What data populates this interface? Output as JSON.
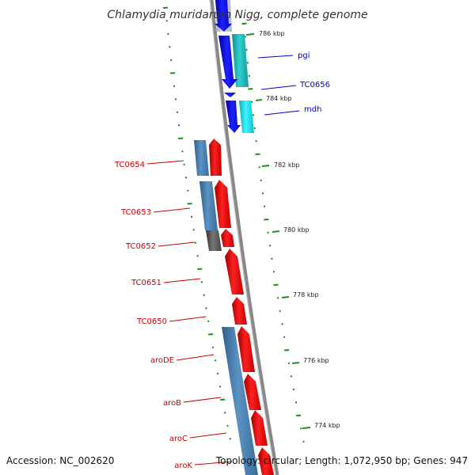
{
  "title": "Chlamydia muridarum Nigg, complete genome",
  "accession": "Accession: NC_002620",
  "topology": "Topology: circular; Length: 1,072,950 bp; Genes: 947",
  "kbp_labels": [
    "786 kbp",
    "784 kbp",
    "782 kbp",
    "780 kbp",
    "778 kbp",
    "776 kbp",
    "774 kbp"
  ],
  "genes_right": [
    "pgi",
    "TC0656",
    "mdh"
  ],
  "genes_left": [
    "TC0654",
    "TC0653",
    "TC0652",
    "TC0651",
    "TC0650",
    "aroDE",
    "aroB",
    "aroC",
    "aroK"
  ],
  "colors": {
    "backbone": "#888888",
    "reverse_strand": "#0000ee",
    "forward_strand": "#ee0000",
    "cog_teal": "#20c0c0",
    "cog_cyan": "#00e5ee",
    "cog_steelblue": "#4682b4",
    "cog_gray": "#555555",
    "ticks": "#228b22",
    "label_red": "#cc0000",
    "label_blue": "#0000cc"
  }
}
